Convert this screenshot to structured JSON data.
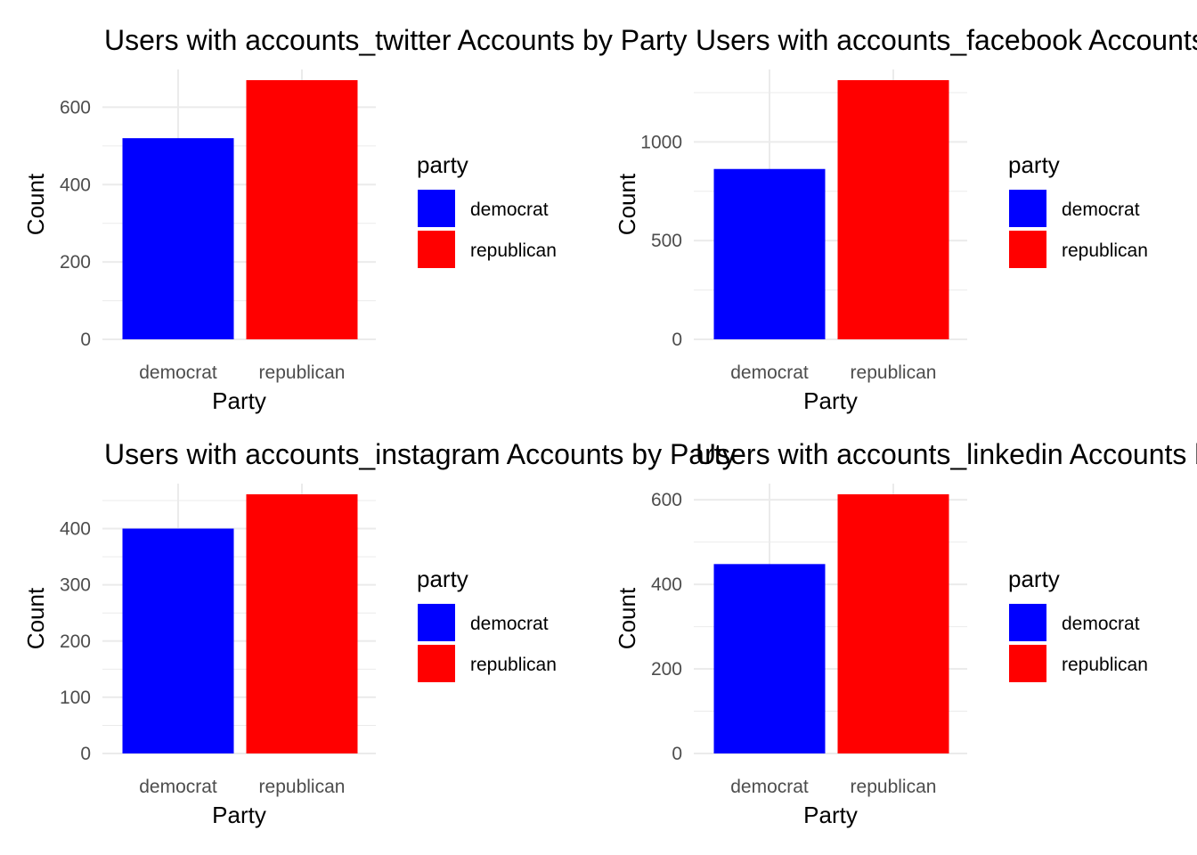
{
  "chart_data": [
    {
      "type": "bar",
      "title": "Users with accounts_twitter Accounts by Party",
      "xlabel": "Party",
      "ylabel": "Count",
      "categories": [
        "democrat",
        "republican"
      ],
      "values": [
        520,
        670
      ],
      "ylim": [
        0,
        670
      ],
      "yticks": [
        0,
        200,
        400,
        600
      ],
      "yminor": [
        100,
        300,
        500
      ],
      "grid": true,
      "legend": {
        "title": "party",
        "entries": [
          "democrat",
          "republican"
        ],
        "position": "right"
      }
    },
    {
      "type": "bar",
      "title": "Users with accounts_facebook Accounts by Party",
      "xlabel": "Party",
      "ylabel": "Count",
      "categories": [
        "democrat",
        "republican"
      ],
      "values": [
        863,
        1313
      ],
      "ylim": [
        0,
        1313
      ],
      "yticks": [
        0,
        500,
        1000
      ],
      "yminor": [
        250,
        750,
        1250
      ],
      "grid": true,
      "legend": {
        "title": "party",
        "entries": [
          "democrat",
          "republican"
        ],
        "position": "right"
      }
    },
    {
      "type": "bar",
      "title": "Users with accounts_instagram Accounts by Party",
      "xlabel": "Party",
      "ylabel": "Count",
      "categories": [
        "democrat",
        "republican"
      ],
      "values": [
        400,
        461
      ],
      "ylim": [
        0,
        461
      ],
      "yticks": [
        0,
        100,
        200,
        300,
        400
      ],
      "yminor": [
        50,
        150,
        250,
        350,
        450
      ],
      "grid": true,
      "legend": {
        "title": "party",
        "entries": [
          "democrat",
          "republican"
        ],
        "position": "right"
      }
    },
    {
      "type": "bar",
      "title": "Users with accounts_linkedin Accounts by Party",
      "xlabel": "Party",
      "ylabel": "Count",
      "categories": [
        "democrat",
        "republican"
      ],
      "values": [
        448,
        613
      ],
      "ylim": [
        0,
        613
      ],
      "yticks": [
        0,
        200,
        400,
        600
      ],
      "yminor": [
        100,
        300,
        500
      ],
      "grid": true,
      "legend": {
        "title": "party",
        "entries": [
          "democrat",
          "republican"
        ],
        "position": "right"
      }
    }
  ],
  "colors": {
    "democrat": "#0000FF",
    "republican": "#FF0000",
    "grid": "#EBEBEB",
    "tick_text": "#4D4D4D",
    "text": "#000000",
    "background": "#FFFFFF"
  }
}
